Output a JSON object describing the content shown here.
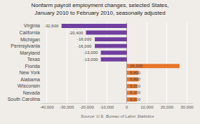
{
  "chart_data": {
    "type": "bar",
    "orientation": "horizontal",
    "title": "Nonfarm payroll employment changes, selected States,\nJanuary 2010 to February 2010, seasonally adjusted",
    "annotations": [
      "Source: U.S. Bureau of Labor Statistics"
    ],
    "categories": [
      "Virginia",
      "California",
      "Michigan",
      "Pennsylvania",
      "Maryland",
      "Texas",
      "Florida",
      "New York",
      "Alabama",
      "Wisconsin",
      "Nevada",
      "South Carolina"
    ],
    "values": [
      -32600,
      -20400,
      -16000,
      -16000,
      -13000,
      -13000,
      26300,
      5800,
      5800,
      5200,
      5100,
      5000
    ],
    "value_labels": [
      "-32,600",
      "-20,400",
      "-16,000",
      "-16,000",
      "-13,000",
      "-13,000",
      "26,300",
      "5,800",
      "5,800",
      "5,200",
      "5,100",
      "5,000"
    ],
    "data_labels": true,
    "colors": [
      "#7040a0",
      "#7040a0",
      "#7040a0",
      "#7040a0",
      "#7040a0",
      "#7040a0",
      "#e8752a",
      "#e8752a",
      "#e8752a",
      "#e8752a",
      "#e8752a",
      "#e8752a"
    ],
    "xlim": [
      -43000,
      33000
    ],
    "xticks": [
      {
        "value": -40000,
        "label": "-40,000"
      },
      {
        "value": -30000,
        "label": "-30,000"
      },
      {
        "value": -20000,
        "label": "-20,000"
      },
      {
        "value": -10000,
        "label": "-10,000"
      },
      0,
      {
        "value": 10000,
        "label": "10,000"
      },
      {
        "value": 20000,
        "label": "20,000"
      },
      {
        "value": 30000,
        "label": "30,000"
      }
    ],
    "grid": true
  }
}
